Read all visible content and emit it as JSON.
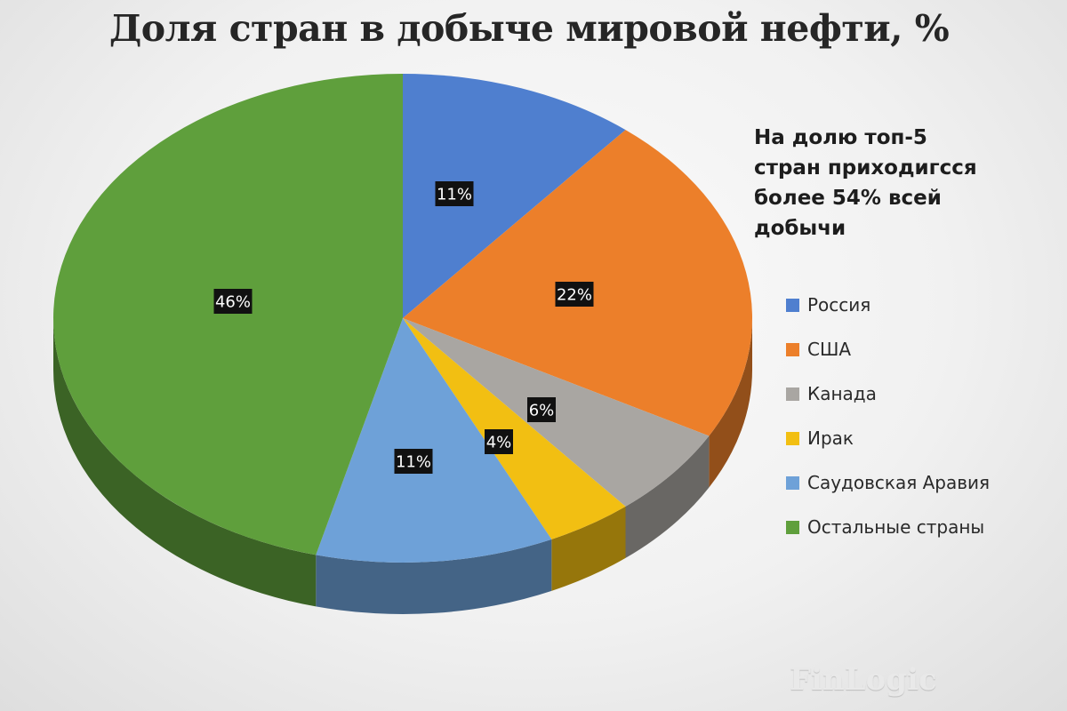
{
  "note": {
    "line1": "На долю топ-5",
    "line2": "стран приходигсся",
    "line3": "более 54% всей",
    "line4": "добычи"
  },
  "watermark": "FinLogic",
  "colors": {
    "Россия": "#4f7fcf",
    "США": "#ec7f2a",
    "Канада": "#a9a6a2",
    "Ирак": "#f2bf12",
    "Саудовская Аравия": "#6ea1d8",
    "Остальные страны": "#5f9f3c"
  },
  "chart_data": {
    "type": "pie",
    "title": "Доля стран в добыче мировой нефти, %",
    "legend_position": "right",
    "categories": [
      "Россия",
      "США",
      "Канада",
      "Ирак",
      "Саудовская Аравия",
      "Остальные страны"
    ],
    "values": [
      11,
      22,
      6,
      4,
      11,
      46
    ],
    "data_labels": [
      "11%",
      "22%",
      "6%",
      "4%",
      "11%",
      "46%"
    ]
  }
}
